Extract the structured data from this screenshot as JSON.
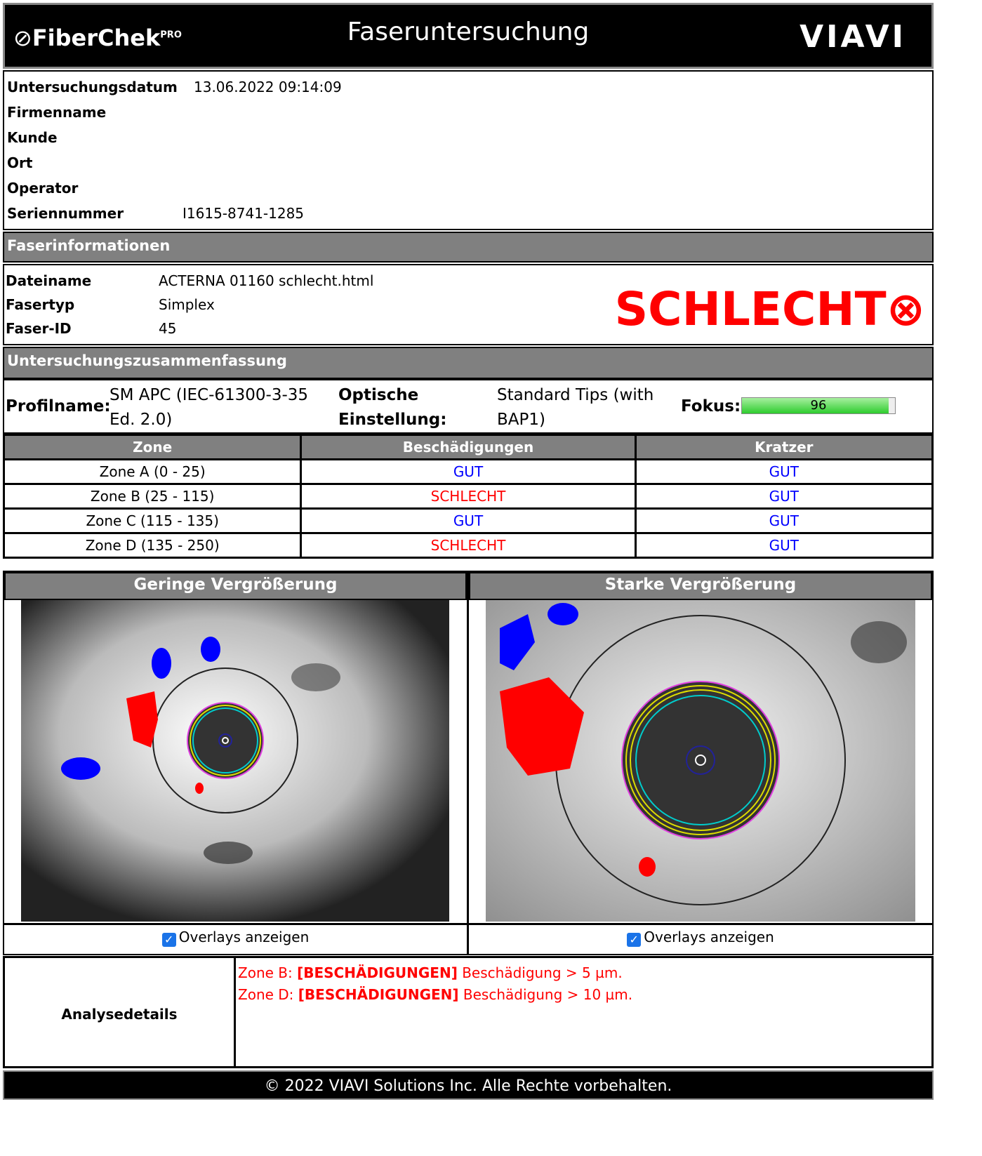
{
  "header": {
    "brand": "FiberChek",
    "brand_sup": "PRO",
    "title": "Faseruntersuchung",
    "logo": "VIAVI"
  },
  "inspection": {
    "rows": [
      {
        "label": "Untersuchungsdatum",
        "value": "13.06.2022 09:14:09"
      },
      {
        "label": "Firmenname",
        "value": null
      },
      {
        "label": "Kunde",
        "value": null
      },
      {
        "label": "Ort",
        "value": null
      },
      {
        "label": "Operator",
        "value": null
      },
      {
        "label": "Seriennummer",
        "value": "I1615-8741-1285"
      }
    ]
  },
  "fiber_info": {
    "title": "Faserinformationen",
    "rows": [
      {
        "label": "Dateiname",
        "value": "ACTERNA 01160 schlecht.html"
      },
      {
        "label": "Fasertyp",
        "value": "Simplex"
      },
      {
        "label": "Faser-ID",
        "value": "45"
      }
    ],
    "result": "SCHLECHT"
  },
  "summary": {
    "title": "Untersuchungszusammenfassung",
    "profile_label": "Profilname:",
    "profile_value": "SM APC (IEC-61300-3-35 Ed. 2.0)",
    "optics_label": "Optische Einstellung:",
    "optics_value": "Standard Tips (with BAP1)",
    "focus_label": "Fokus:",
    "focus_value": 96,
    "focus_range": [
      0,
      100
    ]
  },
  "zones": {
    "headers": [
      "Zone",
      "Beschädigungen",
      "Kratzer"
    ],
    "rows": [
      [
        "Zone A (0 - 25)",
        "GUT",
        "GUT"
      ],
      [
        "Zone B (25 - 115)",
        "SCHLECHT",
        "GUT"
      ],
      [
        "Zone C (115 - 135)",
        "GUT",
        "GUT"
      ],
      [
        "Zone D (135 - 250)",
        "SCHLECHT",
        "GUT"
      ]
    ],
    "status_colors": {
      "GUT": "#0000ff",
      "SCHLECHT": "#ff0000"
    }
  },
  "images": [
    {
      "title": "Geringe Vergrößerung",
      "overlay_label": "Overlays anzeigen"
    },
    {
      "title": "Starke Vergrößerung",
      "overlay_label": "Overlays anzeigen"
    }
  ],
  "analysis": {
    "label": "Analysedetails",
    "lines": [
      {
        "zone": "Zone B:",
        "tag": "[BESCHÄDIGUNGEN]",
        "text": "Beschädigung > 5 µm."
      },
      {
        "zone": "Zone D:",
        "tag": "[BESCHÄDIGUNGEN]",
        "text": "Beschädigung > 10 µm."
      }
    ]
  },
  "footer": "© 2022 VIAVI Solutions Inc. Alle Rechte vorbehalten."
}
